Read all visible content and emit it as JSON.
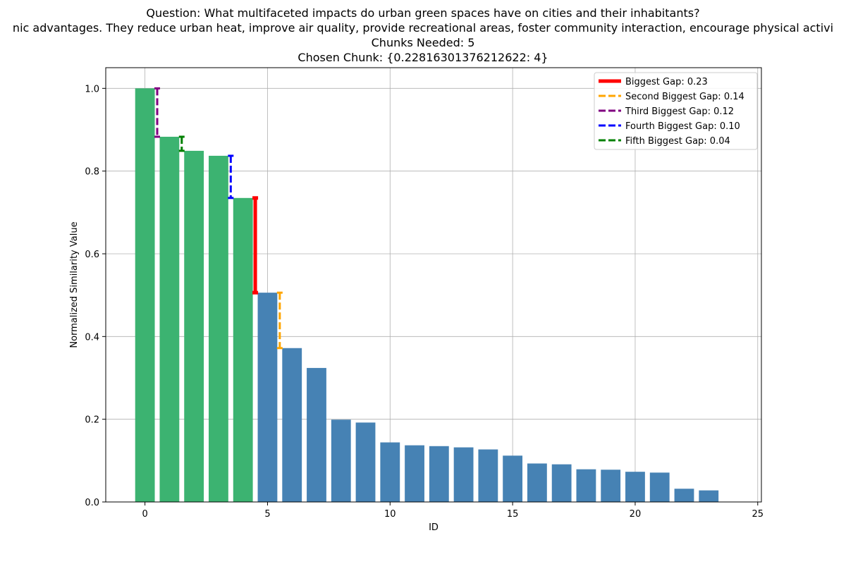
{
  "title_lines": [
    "Question: What multifaceted impacts do urban green spaces have on cities and their inhabitants?",
    "nic advantages. They reduce urban heat, improve air quality, provide recreational areas, foster community interaction, encourage physical activi",
    "Chunks Needed: 5",
    "Chosen Chunk: {0.22816301376212622: 4}"
  ],
  "chart_data": {
    "type": "bar",
    "xlabel": "ID",
    "ylabel": "Normalized Similarity Value",
    "xlim": [
      -1.6,
      25.15
    ],
    "ylim": [
      0,
      1.05
    ],
    "xticks": [
      0,
      5,
      10,
      15,
      20,
      25
    ],
    "yticks": [
      0.0,
      0.2,
      0.4,
      0.6,
      0.8,
      1.0
    ],
    "grid": true,
    "legend_position": "top-right",
    "x": [
      0,
      1,
      2,
      3,
      4,
      5,
      6,
      7,
      8,
      9,
      10,
      11,
      12,
      13,
      14,
      15,
      16,
      17,
      18,
      19,
      20,
      21,
      22,
      23
    ],
    "values": [
      1.0,
      0.883,
      0.849,
      0.837,
      0.735,
      0.506,
      0.372,
      0.324,
      0.199,
      0.192,
      0.144,
      0.137,
      0.135,
      0.132,
      0.127,
      0.112,
      0.093,
      0.091,
      0.079,
      0.078,
      0.073,
      0.071,
      0.032,
      0.028
    ],
    "chosen_count": 5,
    "colors": {
      "chosen": "#3cb371",
      "other": "#4682b4"
    },
    "gaps": [
      {
        "label": "Biggest Gap: 0.23",
        "x": 4.5,
        "top": 0.735,
        "bottom": 0.506,
        "color": "#ff0000",
        "style": "solid"
      },
      {
        "label": "Second Biggest Gap: 0.14",
        "x": 5.5,
        "top": 0.506,
        "bottom": 0.372,
        "color": "#ffa500",
        "style": "dashed"
      },
      {
        "label": "Third Biggest Gap: 0.12",
        "x": 0.5,
        "top": 1.0,
        "bottom": 0.883,
        "color": "#800080",
        "style": "dashed"
      },
      {
        "label": "Fourth Biggest Gap: 0.10",
        "x": 3.5,
        "top": 0.837,
        "bottom": 0.735,
        "color": "#0000ff",
        "style": "dashed"
      },
      {
        "label": "Fifth Biggest Gap: 0.04",
        "x": 1.5,
        "top": 0.883,
        "bottom": 0.849,
        "color": "#008000",
        "style": "dashed"
      }
    ]
  }
}
